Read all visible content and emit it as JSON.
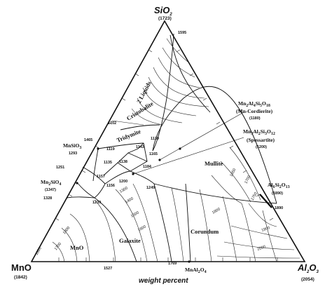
{
  "vertices": {
    "sio2": {
      "label": "SiO",
      "sub": "2",
      "temp": "(1723)"
    },
    "mno": {
      "label": "MnO",
      "temp": "(1842)"
    },
    "al2o3": {
      "label": "Al",
      "sub1": "2",
      "mid": "O",
      "sub2": "3",
      "temp": "(2054)"
    }
  },
  "axis_label": "weight percent",
  "phase_fields": {
    "two_liquids": "2 Liquids",
    "cristobalite": "Cristobalite",
    "tridymite": "Tridymite",
    "mullite": "Mullite",
    "corundum": "Corundum",
    "galaxite": "Galaxite",
    "mno": "MnO"
  },
  "compounds": {
    "mn_cordierite": {
      "formula": "Mn2Al4Si5O18",
      "name": "(Mn-Cordierite)",
      "temp": "(1180)"
    },
    "spessartite": {
      "formula": "Mn3Al2Si3O12",
      "name": "(Spessartite)",
      "temp": "(1200)"
    },
    "mnsio3": {
      "formula": "MnSiO3",
      "temp": "1293"
    },
    "mn2sio4": {
      "formula": "Mn2SiO4",
      "temp": "(1347)"
    },
    "al6si2o13": {
      "formula": "Al6Si2O13",
      "temp": "(1890)"
    },
    "mnal2o4": {
      "formula": "MnAl2O4"
    }
  },
  "temperature_points": [
    "1595",
    "1702",
    "1465",
    "1251",
    "1328",
    "1239",
    "1119",
    "1135",
    "1138",
    "1157",
    "1156",
    "1200",
    "1143",
    "1130",
    "1165",
    "1184",
    "1249",
    "1527",
    "1769",
    "1890"
  ],
  "isotherm_labels": [
    "1300",
    "1400",
    "1500",
    "1600",
    "1650",
    "1700",
    "1750",
    "1800",
    "1800",
    "1700",
    "1800",
    "1900",
    "2000"
  ]
}
